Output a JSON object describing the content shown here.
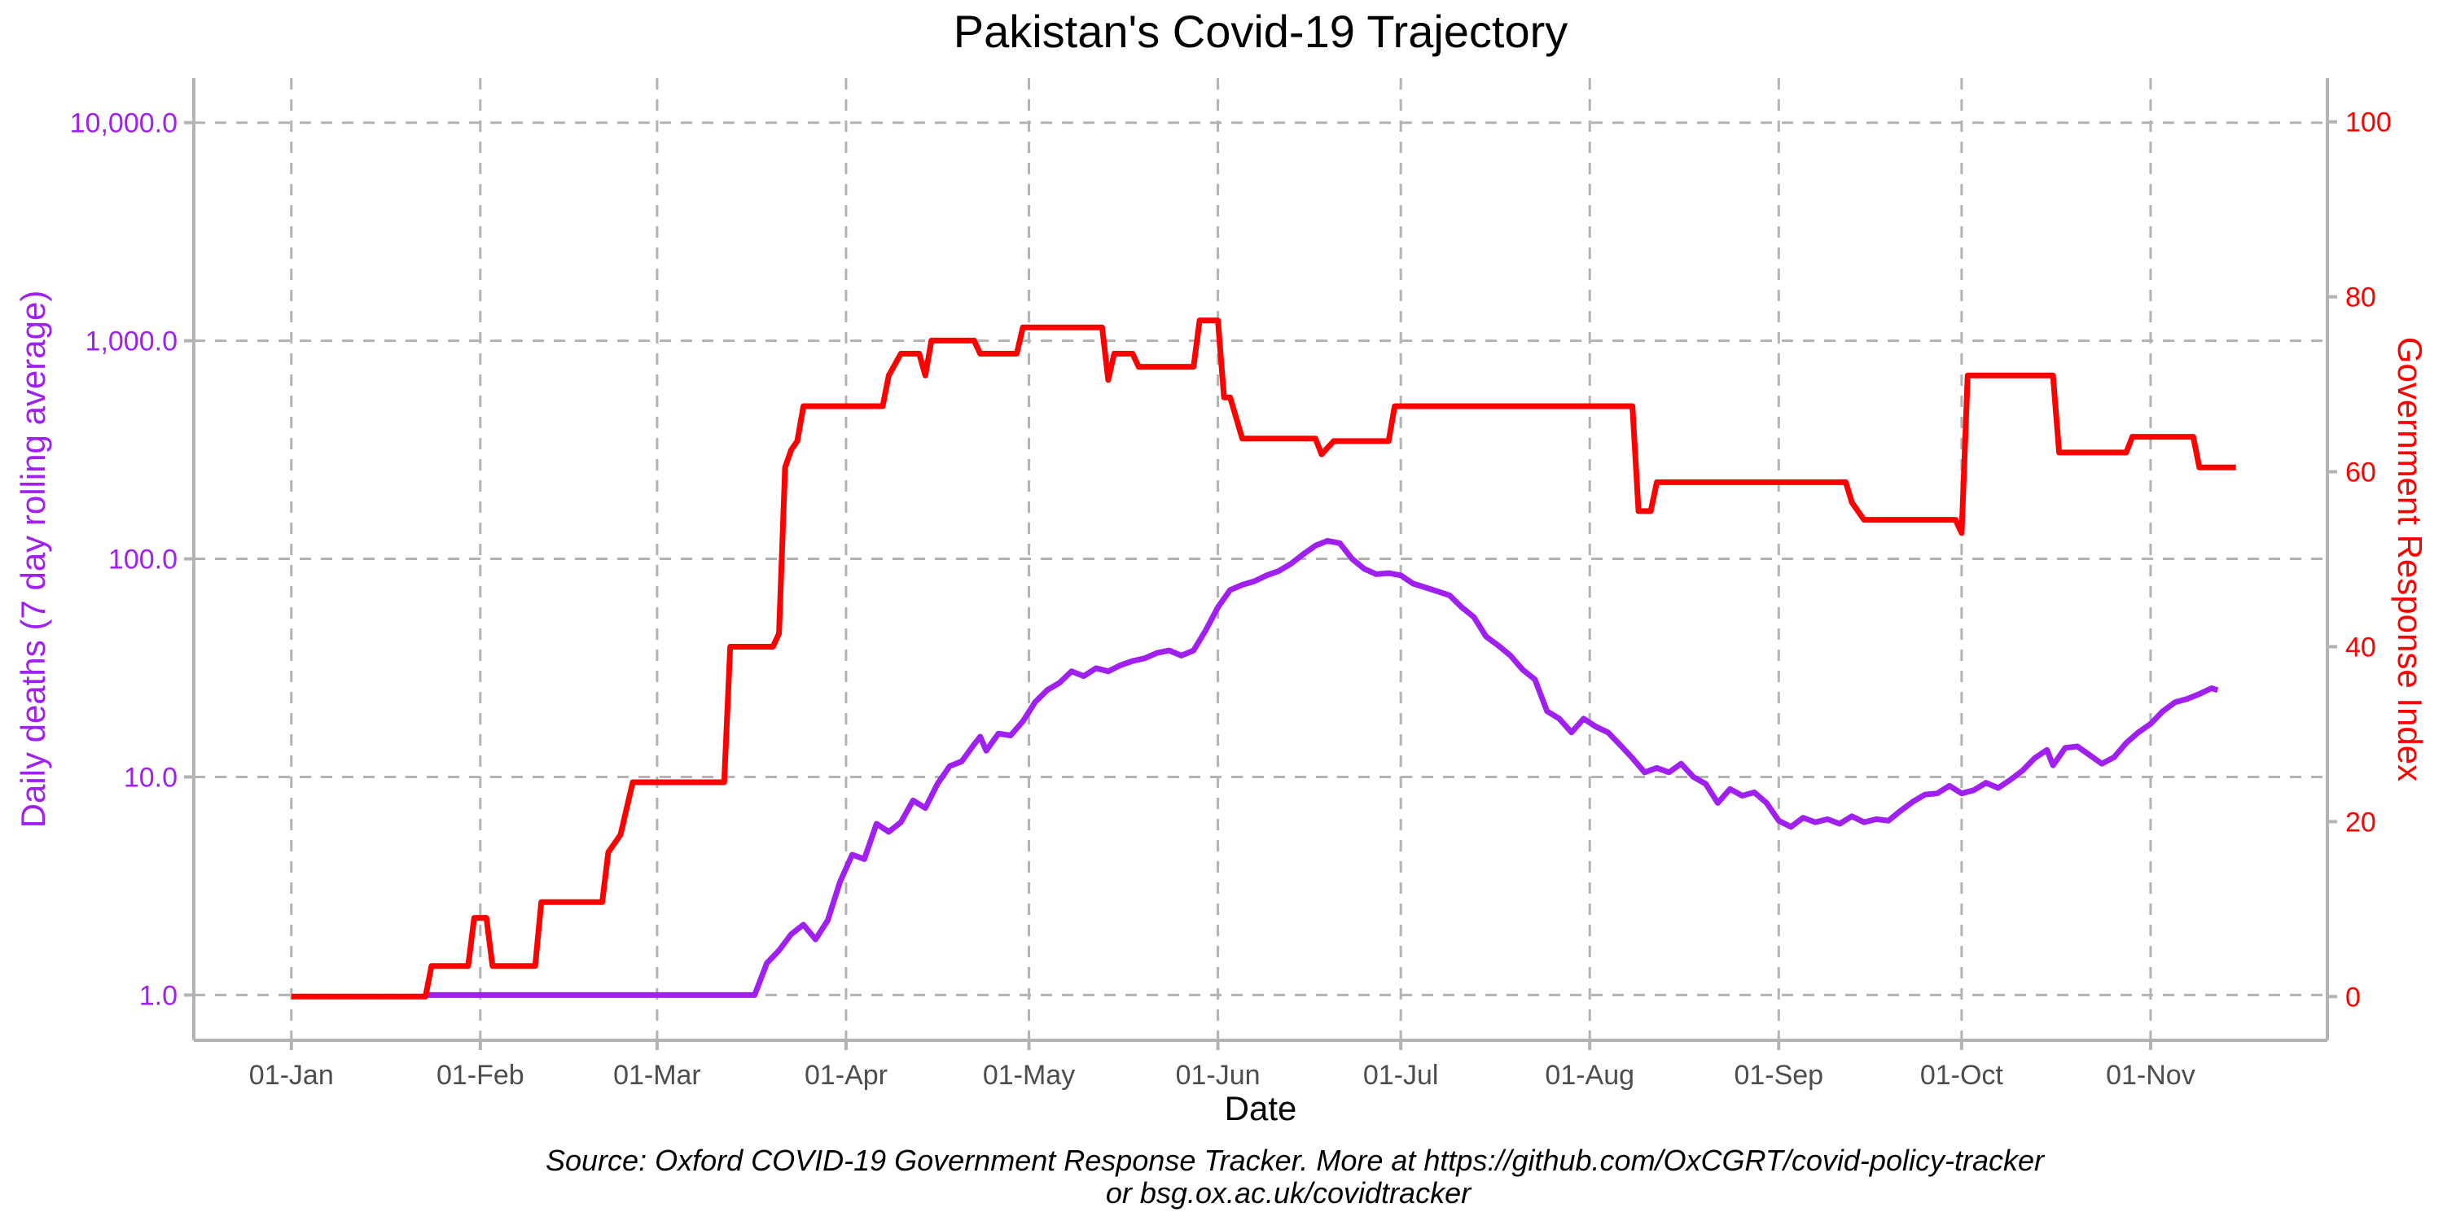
{
  "chart_data": {
    "type": "line",
    "title": "Pakistan's Covid-19 Trajectory",
    "xlabel": "Date",
    "ylabel_left": "Daily deaths (7 day rolling average)",
    "ylabel_right": "Government Response Index",
    "caption_line1": "Source: Oxford COVID-19 Government Response Tracker. More at https://github.com/OxCGRT/covid-policy-tracker",
    "caption_line2": "or bsg.ox.ac.uk/covidtracker",
    "x_ticks": [
      {
        "label": "01-Jan",
        "date": "2020-01-01"
      },
      {
        "label": "01-Feb",
        "date": "2020-02-01"
      },
      {
        "label": "01-Mar",
        "date": "2020-03-01"
      },
      {
        "label": "01-Apr",
        "date": "2020-04-01"
      },
      {
        "label": "01-May",
        "date": "2020-05-01"
      },
      {
        "label": "01-Jun",
        "date": "2020-06-01"
      },
      {
        "label": "01-Jul",
        "date": "2020-07-01"
      },
      {
        "label": "01-Aug",
        "date": "2020-08-01"
      },
      {
        "label": "01-Sep",
        "date": "2020-09-01"
      },
      {
        "label": "01-Oct",
        "date": "2020-10-01"
      },
      {
        "label": "01-Nov",
        "date": "2020-11-01"
      }
    ],
    "xlim": [
      "2019-12-16",
      "2020-11-30"
    ],
    "y_left": {
      "scale": "log10",
      "ticks": [
        1,
        10,
        100,
        1000,
        10000
      ],
      "tick_labels": [
        "1.0",
        "10.0",
        "100.0",
        "1,000.0",
        "10,000.0"
      ],
      "ylim": [
        0.62,
        16000
      ]
    },
    "y_right": {
      "scale": "linear",
      "ticks": [
        0,
        20,
        40,
        60,
        80,
        100
      ],
      "tick_labels": [
        "0",
        "20",
        "40",
        "60",
        "80",
        "100"
      ],
      "ylim": [
        -5,
        105
      ]
    },
    "grid": true,
    "legend": "none",
    "series": [
      {
        "name": "Daily deaths (7 day rolling average)",
        "axis": "left",
        "color": "#a020f0",
        "points": [
          [
            "2020-01-23",
            1
          ],
          [
            "2020-03-17",
            1
          ],
          [
            "2020-03-19",
            1.4
          ],
          [
            "2020-03-21",
            1.6
          ],
          [
            "2020-03-23",
            1.9
          ],
          [
            "2020-03-25",
            2.1
          ],
          [
            "2020-03-27",
            1.8
          ],
          [
            "2020-03-29",
            2.2
          ],
          [
            "2020-03-31",
            3.3
          ],
          [
            "2020-04-02",
            4.4
          ],
          [
            "2020-04-04",
            4.2
          ],
          [
            "2020-04-06",
            6.1
          ],
          [
            "2020-04-08",
            5.6
          ],
          [
            "2020-04-10",
            6.2
          ],
          [
            "2020-04-12",
            7.8
          ],
          [
            "2020-04-14",
            7.2
          ],
          [
            "2020-04-16",
            9.3
          ],
          [
            "2020-04-18",
            11.2
          ],
          [
            "2020-04-20",
            11.8
          ],
          [
            "2020-04-22",
            14.1
          ],
          [
            "2020-04-23",
            15.3
          ],
          [
            "2020-04-24",
            13.2
          ],
          [
            "2020-04-26",
            15.8
          ],
          [
            "2020-04-28",
            15.5
          ],
          [
            "2020-04-30",
            18
          ],
          [
            "2020-05-02",
            22
          ],
          [
            "2020-05-04",
            25
          ],
          [
            "2020-05-06",
            27
          ],
          [
            "2020-05-08",
            30.5
          ],
          [
            "2020-05-10",
            29
          ],
          [
            "2020-05-12",
            31.5
          ],
          [
            "2020-05-14",
            30.5
          ],
          [
            "2020-05-16",
            32.5
          ],
          [
            "2020-05-18",
            34
          ],
          [
            "2020-05-20",
            35
          ],
          [
            "2020-05-22",
            37
          ],
          [
            "2020-05-24",
            38
          ],
          [
            "2020-05-26",
            36
          ],
          [
            "2020-05-28",
            38
          ],
          [
            "2020-05-30",
            47
          ],
          [
            "2020-06-01",
            60
          ],
          [
            "2020-06-03",
            72
          ],
          [
            "2020-06-05",
            76
          ],
          [
            "2020-06-07",
            79
          ],
          [
            "2020-06-09",
            84
          ],
          [
            "2020-06-11",
            88
          ],
          [
            "2020-06-13",
            95
          ],
          [
            "2020-06-15",
            105
          ],
          [
            "2020-06-17",
            115
          ],
          [
            "2020-06-19",
            121
          ],
          [
            "2020-06-21",
            118
          ],
          [
            "2020-06-23",
            100
          ],
          [
            "2020-06-25",
            90
          ],
          [
            "2020-06-27",
            85
          ],
          [
            "2020-06-29",
            86
          ],
          [
            "2020-07-01",
            84
          ],
          [
            "2020-07-03",
            77
          ],
          [
            "2020-07-05",
            74
          ],
          [
            "2020-07-07",
            71
          ],
          [
            "2020-07-09",
            68
          ],
          [
            "2020-07-11",
            60
          ],
          [
            "2020-07-13",
            54
          ],
          [
            "2020-07-15",
            44
          ],
          [
            "2020-07-17",
            40
          ],
          [
            "2020-07-19",
            36
          ],
          [
            "2020-07-21",
            31
          ],
          [
            "2020-07-23",
            28
          ],
          [
            "2020-07-25",
            20
          ],
          [
            "2020-07-27",
            18.5
          ],
          [
            "2020-07-29",
            16
          ],
          [
            "2020-07-31",
            18.5
          ],
          [
            "2020-08-02",
            17
          ],
          [
            "2020-08-04",
            16
          ],
          [
            "2020-08-06",
            14
          ],
          [
            "2020-08-08",
            12.2
          ],
          [
            "2020-08-10",
            10.5
          ],
          [
            "2020-08-12",
            11
          ],
          [
            "2020-08-14",
            10.5
          ],
          [
            "2020-08-16",
            11.5
          ],
          [
            "2020-08-18",
            10
          ],
          [
            "2020-08-20",
            9.3
          ],
          [
            "2020-08-22",
            7.6
          ],
          [
            "2020-08-24",
            8.8
          ],
          [
            "2020-08-26",
            8.2
          ],
          [
            "2020-08-28",
            8.5
          ],
          [
            "2020-08-30",
            7.6
          ],
          [
            "2020-09-01",
            6.3
          ],
          [
            "2020-09-03",
            5.9
          ],
          [
            "2020-09-05",
            6.5
          ],
          [
            "2020-09-07",
            6.2
          ],
          [
            "2020-09-09",
            6.4
          ],
          [
            "2020-09-11",
            6.1
          ],
          [
            "2020-09-13",
            6.6
          ],
          [
            "2020-09-15",
            6.2
          ],
          [
            "2020-09-17",
            6.4
          ],
          [
            "2020-09-19",
            6.3
          ],
          [
            "2020-09-21",
            7
          ],
          [
            "2020-09-23",
            7.7
          ],
          [
            "2020-09-25",
            8.3
          ],
          [
            "2020-09-27",
            8.4
          ],
          [
            "2020-09-29",
            9.1
          ],
          [
            "2020-10-01",
            8.4
          ],
          [
            "2020-10-03",
            8.7
          ],
          [
            "2020-10-05",
            9.4
          ],
          [
            "2020-10-07",
            8.9
          ],
          [
            "2020-10-09",
            9.7
          ],
          [
            "2020-10-11",
            10.7
          ],
          [
            "2020-10-13",
            12.2
          ],
          [
            "2020-10-15",
            13.3
          ],
          [
            "2020-10-16",
            11.3
          ],
          [
            "2020-10-18",
            13.6
          ],
          [
            "2020-10-20",
            13.8
          ],
          [
            "2020-10-22",
            12.6
          ],
          [
            "2020-10-24",
            11.5
          ],
          [
            "2020-10-26",
            12.3
          ],
          [
            "2020-10-28",
            14.3
          ],
          [
            "2020-10-30",
            16
          ],
          [
            "2020-11-01",
            17.5
          ],
          [
            "2020-11-03",
            20
          ],
          [
            "2020-11-05",
            22
          ],
          [
            "2020-11-07",
            22.8
          ],
          [
            "2020-11-09",
            24
          ],
          [
            "2020-11-11",
            25.5
          ],
          [
            "2020-11-12",
            25
          ]
        ]
      },
      {
        "name": "Government Response Index",
        "axis": "right",
        "color": "#ff0000",
        "step": true,
        "points": [
          [
            "2020-01-01",
            0
          ],
          [
            "2020-01-23",
            0
          ],
          [
            "2020-01-24",
            3.5
          ],
          [
            "2020-01-30",
            3.5
          ],
          [
            "2020-01-31",
            9
          ],
          [
            "2020-02-02",
            9
          ],
          [
            "2020-02-03",
            3.5
          ],
          [
            "2020-02-10",
            3.5
          ],
          [
            "2020-02-11",
            10.8
          ],
          [
            "2020-02-21",
            10.8
          ],
          [
            "2020-02-22",
            16.5
          ],
          [
            "2020-02-24",
            18.5
          ],
          [
            "2020-02-26",
            24.5
          ],
          [
            "2020-03-12",
            24.5
          ],
          [
            "2020-03-13",
            40
          ],
          [
            "2020-03-20",
            40
          ],
          [
            "2020-03-21",
            41.5
          ],
          [
            "2020-03-22",
            60.5
          ],
          [
            "2020-03-23",
            62.5
          ],
          [
            "2020-03-24",
            63.5
          ],
          [
            "2020-03-25",
            67.5
          ],
          [
            "2020-04-07",
            67.5
          ],
          [
            "2020-04-08",
            71
          ],
          [
            "2020-04-10",
            73.5
          ],
          [
            "2020-04-13",
            73.5
          ],
          [
            "2020-04-14",
            71
          ],
          [
            "2020-04-15",
            75
          ],
          [
            "2020-04-22",
            75
          ],
          [
            "2020-04-23",
            73.5
          ],
          [
            "2020-04-29",
            73.5
          ],
          [
            "2020-04-30",
            76.5
          ],
          [
            "2020-05-13",
            76.5
          ],
          [
            "2020-05-14",
            70.5
          ],
          [
            "2020-05-15",
            73.5
          ],
          [
            "2020-05-18",
            73.5
          ],
          [
            "2020-05-19",
            72
          ],
          [
            "2020-05-28",
            72
          ],
          [
            "2020-05-29",
            77.3
          ],
          [
            "2020-06-01",
            77.3
          ],
          [
            "2020-06-02",
            68.5
          ],
          [
            "2020-06-03",
            68.5
          ],
          [
            "2020-06-05",
            63.8
          ],
          [
            "2020-06-17",
            63.8
          ],
          [
            "2020-06-18",
            62
          ],
          [
            "2020-06-20",
            63.5
          ],
          [
            "2020-06-29",
            63.5
          ],
          [
            "2020-06-30",
            67.5
          ],
          [
            "2020-08-08",
            67.5
          ],
          [
            "2020-08-09",
            55.5
          ],
          [
            "2020-08-11",
            55.5
          ],
          [
            "2020-08-12",
            58.8
          ],
          [
            "2020-09-12",
            58.8
          ],
          [
            "2020-09-13",
            56.5
          ],
          [
            "2020-09-15",
            54.5
          ],
          [
            "2020-09-30",
            54.5
          ],
          [
            "2020-10-01",
            53
          ],
          [
            "2020-10-02",
            71
          ],
          [
            "2020-10-16",
            71
          ],
          [
            "2020-10-17",
            62.2
          ],
          [
            "2020-10-28",
            62.2
          ],
          [
            "2020-10-29",
            64
          ],
          [
            "2020-11-08",
            64
          ],
          [
            "2020-11-09",
            60.5
          ],
          [
            "2020-11-15",
            60.5
          ]
        ]
      }
    ]
  }
}
